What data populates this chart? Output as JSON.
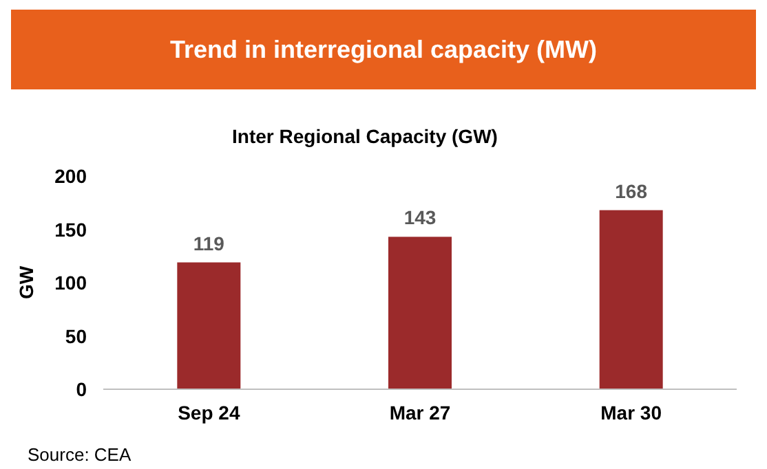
{
  "chart_data": {
    "type": "bar",
    "title": "Trend in interregional capacity (MW)",
    "subtitle": "Inter Regional Capacity (GW)",
    "ylabel": "GW",
    "categories": [
      "Sep 24",
      "Mar 27",
      "Mar 30"
    ],
    "values": [
      119,
      143,
      168
    ],
    "color": "#9b2a2b",
    "ylim": [
      0,
      200
    ],
    "yticks": [
      0,
      50,
      100,
      150,
      200
    ],
    "data_labels": true,
    "annotations": [
      "Source: CEA"
    ]
  }
}
